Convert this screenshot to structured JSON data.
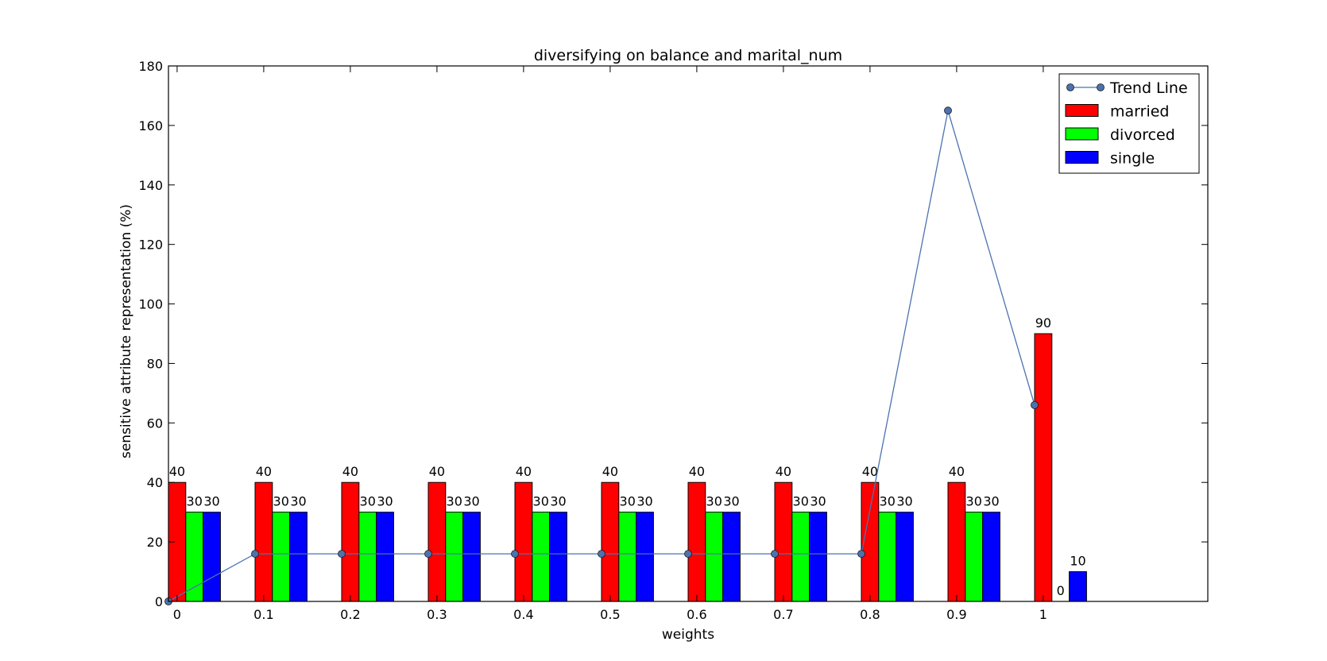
{
  "chart_data": {
    "type": "bar",
    "title": "diversifying on balance and marital_num",
    "xlabel": "weights",
    "ylabel": "sensitive attribute representation (%)",
    "categories": [
      "0",
      "0.1",
      "0.2",
      "0.3",
      "0.4",
      "0.5",
      "0.6",
      "0.7",
      "0.8",
      "0.9",
      "1"
    ],
    "ylim": [
      0,
      180
    ],
    "yticks": [
      0,
      20,
      40,
      60,
      80,
      100,
      120,
      140,
      160,
      180
    ],
    "xlim": [
      0,
      12
    ],
    "grid": false,
    "legend_position": "top-right",
    "series": [
      {
        "name": "married",
        "color": "#ff0000",
        "values": [
          40,
          40,
          40,
          40,
          40,
          40,
          40,
          40,
          40,
          40,
          90
        ]
      },
      {
        "name": "divorced",
        "color": "#00ff00",
        "values": [
          30,
          30,
          30,
          30,
          30,
          30,
          30,
          30,
          30,
          30,
          0
        ]
      },
      {
        "name": "single",
        "color": "#0000ff",
        "values": [
          30,
          30,
          30,
          30,
          30,
          30,
          30,
          30,
          30,
          30,
          10
        ]
      }
    ],
    "trend_line": {
      "name": "Trend Line",
      "color": "#4c72b0",
      "values": [
        0,
        16,
        16,
        16,
        16,
        16,
        16,
        16,
        16,
        165,
        66
      ]
    }
  }
}
